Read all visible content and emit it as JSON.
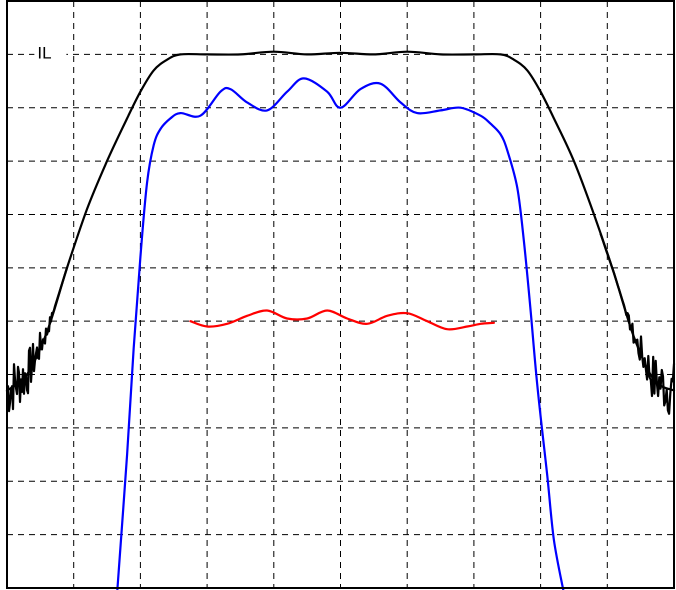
{
  "chart_data": {
    "type": "line",
    "title": "",
    "xlabel": "",
    "ylabel": "",
    "xlim": [
      0,
      10
    ],
    "ylim": [
      0,
      11
    ],
    "grid": true,
    "annotations": [
      {
        "text": "IL",
        "x": 0.5,
        "y": 10.0
      }
    ],
    "series": [
      {
        "color": "#000000",
        "noisy_tails": true,
        "x": [
          0.0,
          0.3,
          0.6,
          0.9,
          1.2,
          1.5,
          1.8,
          2.0,
          2.2,
          2.4,
          2.6,
          3.0,
          3.5,
          4.0,
          4.5,
          5.0,
          5.5,
          6.0,
          6.5,
          7.0,
          7.4,
          7.6,
          7.8,
          8.0,
          8.2,
          8.5,
          8.8,
          9.1,
          9.4,
          9.7,
          10.0
        ],
        "y": [
          3.7,
          4.0,
          4.8,
          6.0,
          7.1,
          8.0,
          8.8,
          9.3,
          9.7,
          9.9,
          10.0,
          10.0,
          10.0,
          10.05,
          10.0,
          10.03,
          10.0,
          10.05,
          10.0,
          10.0,
          10.0,
          9.9,
          9.7,
          9.3,
          8.8,
          8.0,
          7.0,
          5.9,
          4.7,
          3.9,
          3.7
        ]
      },
      {
        "color": "#0000ff",
        "x": [
          1.65,
          1.8,
          1.9,
          2.0,
          2.1,
          2.2,
          2.3,
          2.45,
          2.6,
          2.9,
          3.2,
          3.35,
          3.6,
          3.9,
          4.2,
          4.45,
          4.8,
          5.0,
          5.3,
          5.6,
          5.9,
          6.15,
          6.5,
          6.8,
          7.1,
          7.25,
          7.4,
          7.5,
          7.65,
          7.75,
          7.85,
          7.95,
          8.1,
          8.2,
          8.35
        ],
        "y": [
          -0.1,
          2.5,
          4.5,
          6.2,
          7.6,
          8.3,
          8.6,
          8.8,
          8.9,
          8.85,
          9.3,
          9.35,
          9.1,
          8.95,
          9.3,
          9.55,
          9.3,
          9.0,
          9.35,
          9.45,
          9.1,
          8.9,
          8.95,
          9.0,
          8.85,
          8.7,
          8.5,
          8.2,
          7.5,
          6.5,
          5.2,
          3.8,
          2.1,
          0.9,
          -0.1
        ]
      },
      {
        "color": "#ff0000",
        "x": [
          2.75,
          3.0,
          3.3,
          3.6,
          3.9,
          4.2,
          4.5,
          4.8,
          5.1,
          5.4,
          5.7,
          6.0,
          6.3,
          6.6,
          6.9,
          7.1,
          7.3
        ],
        "y": [
          5.0,
          4.9,
          4.95,
          5.1,
          5.2,
          5.05,
          5.05,
          5.2,
          5.05,
          4.95,
          5.1,
          5.15,
          5.0,
          4.85,
          4.9,
          4.95,
          4.97
        ]
      }
    ]
  }
}
